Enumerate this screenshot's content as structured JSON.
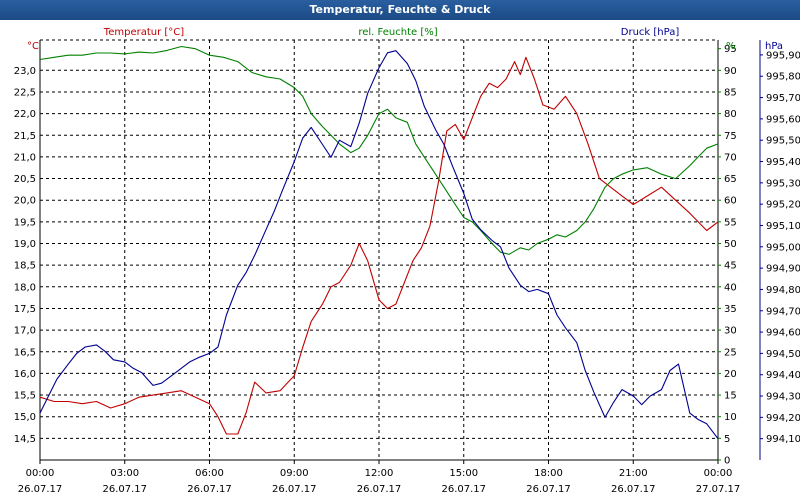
{
  "window_title": "Temperatur, Feuchte & Druck",
  "chart_data": {
    "type": "line",
    "title": "Temperatur, Feuchte & Druck",
    "x_range_hours": [
      0,
      24
    ],
    "grid": true,
    "x_ticks": [
      {
        "time": "00:00",
        "date": "26.07.17"
      },
      {
        "time": "03:00",
        "date": "26.07.17"
      },
      {
        "time": "06:00",
        "date": "26.07.17"
      },
      {
        "time": "09:00",
        "date": "26.07.17"
      },
      {
        "time": "12:00",
        "date": "26.07.17"
      },
      {
        "time": "15:00",
        "date": "26.07.17"
      },
      {
        "time": "18:00",
        "date": "26.07.17"
      },
      {
        "time": "21:00",
        "date": "26.07.17"
      },
      {
        "time": "00:00",
        "date": "27.07.17"
      }
    ],
    "axes": {
      "temperature": {
        "label": "Temperatur [°C]",
        "unit": "°C",
        "range": [
          14.0,
          23.7
        ],
        "color": "#c00000",
        "ticks": [
          "14,5",
          "15,0",
          "15,5",
          "16,0",
          "16,5",
          "17,0",
          "17,5",
          "18,0",
          "18,5",
          "19,0",
          "19,5",
          "20,0",
          "20,5",
          "21,0",
          "21,5",
          "22,0",
          "22,5",
          "23,0"
        ]
      },
      "humidity": {
        "label": "rel. Feuchte [%]",
        "unit": "%",
        "range": [
          0,
          97
        ],
        "color": "#008000",
        "ticks": [
          "0",
          "5",
          "10",
          "15",
          "20",
          "25",
          "30",
          "35",
          "40",
          "45",
          "50",
          "55",
          "60",
          "65",
          "70",
          "75",
          "80",
          "85",
          "90",
          "95"
        ]
      },
      "pressure": {
        "label": "Druck [hPa]",
        "unit": "hPa",
        "range": [
          994.0,
          995.97
        ],
        "color": "#000090",
        "ticks": [
          "994,10",
          "994,20",
          "994,30",
          "994,40",
          "994,50",
          "994,60",
          "994,70",
          "994,80",
          "994,90",
          "995,00",
          "995,10",
          "995,20",
          "995,30",
          "995,40",
          "995,50",
          "995,60",
          "995,70",
          "995,80",
          "995,90"
        ]
      }
    },
    "series": [
      {
        "name": "Temperatur [°C]",
        "axis": "temperature",
        "color": "#c00000",
        "points": [
          [
            0,
            15.45
          ],
          [
            0.5,
            15.35
          ],
          [
            1,
            15.35
          ],
          [
            1.5,
            15.3
          ],
          [
            2,
            15.35
          ],
          [
            2.5,
            15.2
          ],
          [
            3,
            15.3
          ],
          [
            3.5,
            15.45
          ],
          [
            4,
            15.5
          ],
          [
            4.5,
            15.55
          ],
          [
            5,
            15.6
          ],
          [
            5.5,
            15.45
          ],
          [
            6,
            15.3
          ],
          [
            6.3,
            15.0
          ],
          [
            6.6,
            14.6
          ],
          [
            7,
            14.6
          ],
          [
            7.3,
            15.1
          ],
          [
            7.6,
            15.8
          ],
          [
            8,
            15.55
          ],
          [
            8.5,
            15.6
          ],
          [
            9,
            15.95
          ],
          [
            9.3,
            16.6
          ],
          [
            9.6,
            17.2
          ],
          [
            10,
            17.6
          ],
          [
            10.3,
            18.0
          ],
          [
            10.6,
            18.1
          ],
          [
            11,
            18.5
          ],
          [
            11.3,
            19.0
          ],
          [
            11.6,
            18.6
          ],
          [
            12,
            17.7
          ],
          [
            12.3,
            17.5
          ],
          [
            12.6,
            17.6
          ],
          [
            12.9,
            18.1
          ],
          [
            13.2,
            18.6
          ],
          [
            13.5,
            18.9
          ],
          [
            13.8,
            19.4
          ],
          [
            14.1,
            20.4
          ],
          [
            14.4,
            21.6
          ],
          [
            14.7,
            21.75
          ],
          [
            15,
            21.4
          ],
          [
            15.3,
            21.9
          ],
          [
            15.6,
            22.4
          ],
          [
            15.9,
            22.7
          ],
          [
            16.2,
            22.6
          ],
          [
            16.5,
            22.8
          ],
          [
            16.8,
            23.2
          ],
          [
            17,
            22.9
          ],
          [
            17.2,
            23.3
          ],
          [
            17.5,
            22.8
          ],
          [
            17.8,
            22.2
          ],
          [
            18.2,
            22.1
          ],
          [
            18.6,
            22.4
          ],
          [
            19,
            22.0
          ],
          [
            19.4,
            21.3
          ],
          [
            19.8,
            20.5
          ],
          [
            20.2,
            20.3
          ],
          [
            20.6,
            20.1
          ],
          [
            21,
            19.9
          ],
          [
            21.5,
            20.1
          ],
          [
            22,
            20.3
          ],
          [
            22.5,
            20.0
          ],
          [
            23,
            19.7
          ],
          [
            23.3,
            19.5
          ],
          [
            23.6,
            19.3
          ],
          [
            24,
            19.5
          ]
        ]
      },
      {
        "name": "rel. Feuchte [%]",
        "axis": "humidity",
        "color": "#008000",
        "points": [
          [
            0,
            92.5
          ],
          [
            0.5,
            93
          ],
          [
            1,
            93.5
          ],
          [
            1.5,
            93.5
          ],
          [
            2,
            94
          ],
          [
            2.5,
            94
          ],
          [
            3,
            93.8
          ],
          [
            3.5,
            94.2
          ],
          [
            4,
            94
          ],
          [
            4.5,
            94.6
          ],
          [
            5,
            95.5
          ],
          [
            5.5,
            95
          ],
          [
            6,
            93.5
          ],
          [
            6.5,
            93
          ],
          [
            7,
            92
          ],
          [
            7.5,
            89.5
          ],
          [
            8,
            88.5
          ],
          [
            8.5,
            88
          ],
          [
            9,
            86
          ],
          [
            9.3,
            84
          ],
          [
            9.6,
            80
          ],
          [
            10,
            77
          ],
          [
            10.3,
            75
          ],
          [
            10.6,
            73
          ],
          [
            11,
            71
          ],
          [
            11.3,
            72
          ],
          [
            11.6,
            75
          ],
          [
            12,
            80
          ],
          [
            12.3,
            81
          ],
          [
            12.6,
            79
          ],
          [
            13,
            78
          ],
          [
            13.3,
            73
          ],
          [
            13.6,
            70
          ],
          [
            14,
            66
          ],
          [
            14.3,
            63
          ],
          [
            14.6,
            60
          ],
          [
            15,
            56
          ],
          [
            15.3,
            55
          ],
          [
            15.6,
            53
          ],
          [
            16,
            50
          ],
          [
            16.3,
            48
          ],
          [
            16.6,
            47.5
          ],
          [
            17,
            49
          ],
          [
            17.3,
            48.5
          ],
          [
            17.6,
            50
          ],
          [
            18,
            51
          ],
          [
            18.3,
            52
          ],
          [
            18.6,
            51.5
          ],
          [
            19,
            53
          ],
          [
            19.3,
            55
          ],
          [
            19.6,
            58
          ],
          [
            20,
            63
          ],
          [
            20.3,
            65
          ],
          [
            20.6,
            66
          ],
          [
            21,
            67
          ],
          [
            21.5,
            67.5
          ],
          [
            22,
            66
          ],
          [
            22.5,
            65
          ],
          [
            23,
            68
          ],
          [
            23.3,
            70
          ],
          [
            23.6,
            72
          ],
          [
            24,
            73
          ]
        ]
      },
      {
        "name": "Druck [hPa]",
        "axis": "pressure",
        "color": "#000090",
        "points": [
          [
            0,
            994.22
          ],
          [
            0.3,
            994.3
          ],
          [
            0.6,
            994.38
          ],
          [
            1,
            994.45
          ],
          [
            1.3,
            994.5
          ],
          [
            1.6,
            994.53
          ],
          [
            2,
            994.54
          ],
          [
            2.3,
            994.51
          ],
          [
            2.6,
            994.47
          ],
          [
            3,
            994.46
          ],
          [
            3.3,
            994.43
          ],
          [
            3.6,
            994.41
          ],
          [
            4,
            994.35
          ],
          [
            4.3,
            994.36
          ],
          [
            4.6,
            994.39
          ],
          [
            5,
            994.43
          ],
          [
            5.3,
            994.46
          ],
          [
            5.6,
            994.48
          ],
          [
            6,
            994.5
          ],
          [
            6.3,
            994.53
          ],
          [
            6.6,
            994.68
          ],
          [
            7,
            994.82
          ],
          [
            7.3,
            994.88
          ],
          [
            7.6,
            994.96
          ],
          [
            8,
            995.08
          ],
          [
            8.3,
            995.17
          ],
          [
            8.6,
            995.27
          ],
          [
            9,
            995.4
          ],
          [
            9.3,
            995.51
          ],
          [
            9.6,
            995.56
          ],
          [
            10,
            995.48
          ],
          [
            10.3,
            995.42
          ],
          [
            10.6,
            995.5
          ],
          [
            11,
            995.47
          ],
          [
            11.3,
            995.58
          ],
          [
            11.6,
            995.72
          ],
          [
            12,
            995.84
          ],
          [
            12.3,
            995.91
          ],
          [
            12.6,
            995.92
          ],
          [
            13,
            995.86
          ],
          [
            13.3,
            995.78
          ],
          [
            13.6,
            995.66
          ],
          [
            14,
            995.55
          ],
          [
            14.3,
            995.48
          ],
          [
            14.6,
            995.38
          ],
          [
            15,
            995.25
          ],
          [
            15.3,
            995.13
          ],
          [
            15.6,
            995.08
          ],
          [
            16,
            995.03
          ],
          [
            16.3,
            995.0
          ],
          [
            16.6,
            994.9
          ],
          [
            17,
            994.82
          ],
          [
            17.3,
            994.79
          ],
          [
            17.6,
            994.8
          ],
          [
            18,
            994.78
          ],
          [
            18.3,
            994.68
          ],
          [
            18.6,
            994.62
          ],
          [
            19,
            994.55
          ],
          [
            19.3,
            994.42
          ],
          [
            19.6,
            994.32
          ],
          [
            20,
            994.2
          ],
          [
            20.3,
            994.27
          ],
          [
            20.6,
            994.33
          ],
          [
            21,
            994.3
          ],
          [
            21.3,
            994.26
          ],
          [
            21.6,
            994.3
          ],
          [
            22,
            994.33
          ],
          [
            22.3,
            994.42
          ],
          [
            22.6,
            994.45
          ],
          [
            23,
            994.22
          ],
          [
            23.3,
            994.19
          ],
          [
            23.6,
            994.17
          ],
          [
            24,
            994.1
          ]
        ]
      }
    ]
  }
}
